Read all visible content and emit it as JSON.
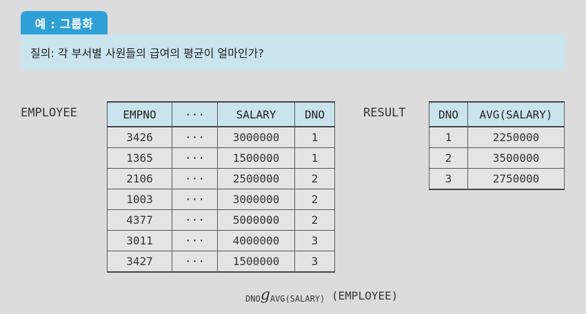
{
  "title": "예 : 그룹화",
  "query": "질의: 각 부서별 사원들의 급여의 평균이 얼마인가?",
  "employee": {
    "label": "EMPLOYEE",
    "headers": [
      "EMPNO",
      "···",
      "SALARY",
      "DNO"
    ],
    "rows": [
      [
        "3426",
        "···",
        "3000000",
        "1"
      ],
      [
        "1365",
        "···",
        "1500000",
        "1"
      ],
      [
        "2106",
        "···",
        "2500000",
        "2"
      ],
      [
        "1003",
        "···",
        "3000000",
        "2"
      ],
      [
        "4377",
        "···",
        "5000000",
        "2"
      ],
      [
        "3011",
        "···",
        "4000000",
        "3"
      ],
      [
        "3427",
        "···",
        "1500000",
        "3"
      ]
    ]
  },
  "result": {
    "label": "RESULT",
    "headers": [
      "DNO",
      "AVG(SALARY)"
    ],
    "rows": [
      [
        "1",
        "2250000"
      ],
      [
        "2",
        "3500000"
      ],
      [
        "3",
        "2750000"
      ]
    ]
  },
  "formula": {
    "group_attr": "DNO",
    "operator": "g",
    "function": "AVG(SALARY)",
    "relation": "(EMPLOYEE)"
  }
}
